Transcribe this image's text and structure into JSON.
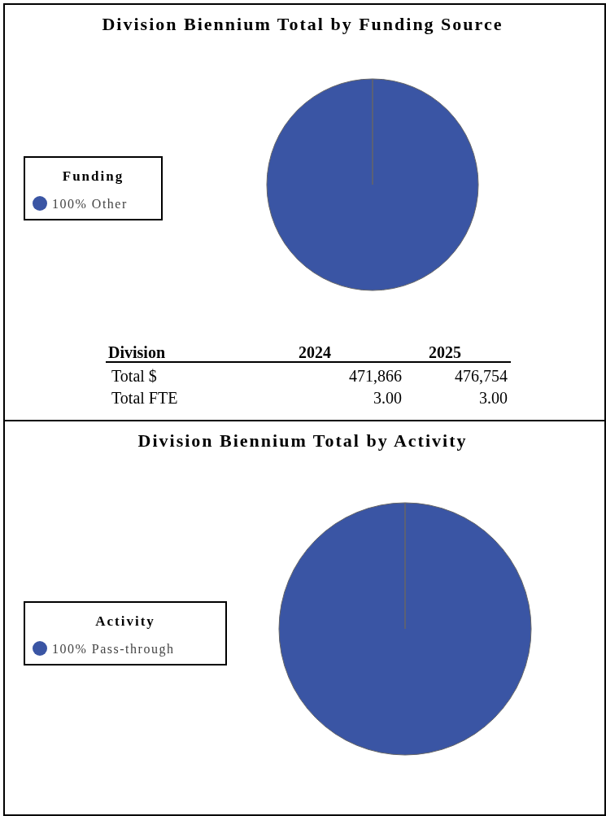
{
  "chart_data": [
    {
      "type": "pie",
      "title": "Division Biennium Total by Funding Source",
      "legend_title": "Funding",
      "legend": "left",
      "categories": [
        "Other"
      ],
      "values": [
        100
      ],
      "value_labels": [
        "100%"
      ],
      "colors": [
        "#3a55a4"
      ]
    },
    {
      "type": "other",
      "annotations": [
        "Division",
        "2024",
        "2025",
        "Total $",
        "471,866",
        "476,754",
        "Total FTE",
        "3.00",
        "3.00"
      ]
    },
    {
      "type": "pie",
      "title": "Division Biennium Total by Activity",
      "legend_title": "Activity",
      "legend": "left",
      "categories": [
        "Pass-through"
      ],
      "values": [
        100
      ],
      "value_labels": [
        "100%"
      ],
      "colors": [
        "#3a55a4"
      ]
    }
  ]
}
